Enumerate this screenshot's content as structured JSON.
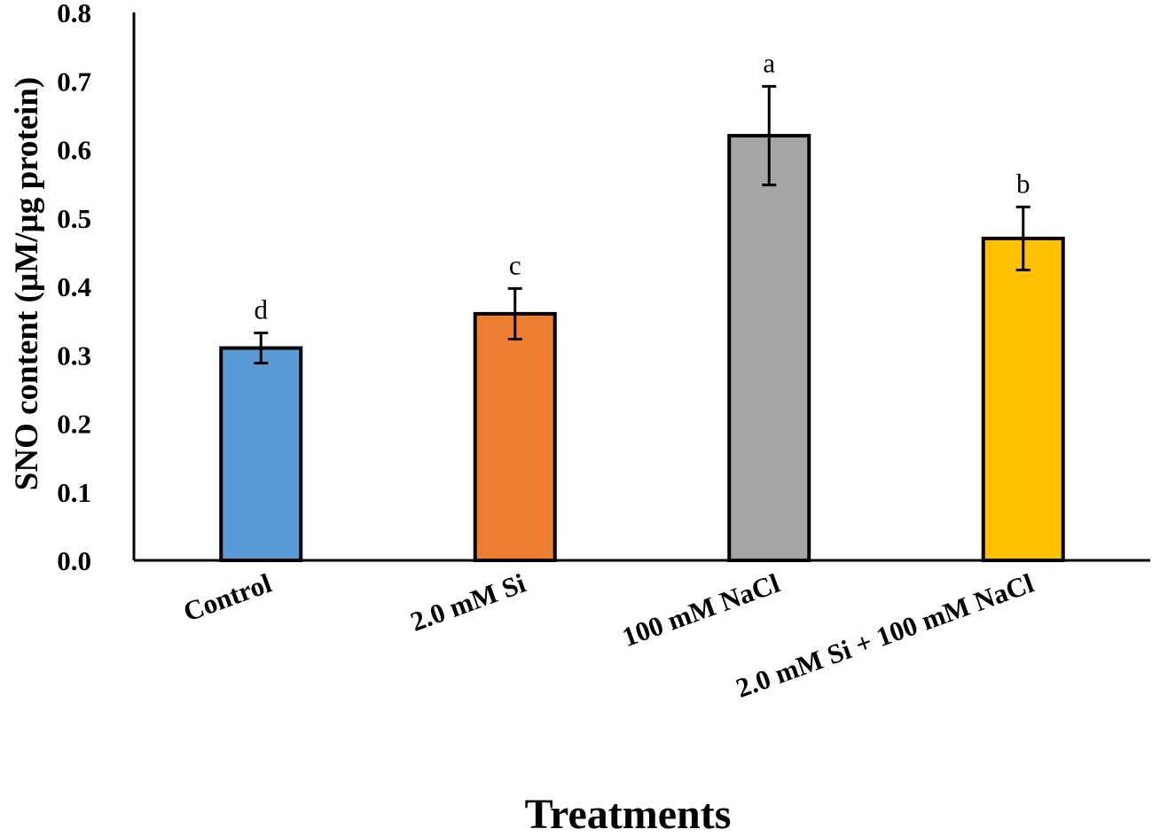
{
  "chart_data": {
    "type": "bar",
    "title": "",
    "xlabel": "Treatments",
    "ylabel": "SNO content (µM/µg protein)",
    "categories": [
      "Control",
      "2.0 mM Si",
      "100 mM NaCl",
      "2.0 mM Si + 100 mM NaCl"
    ],
    "values": [
      0.31,
      0.36,
      0.62,
      0.47
    ],
    "errors": [
      0.022,
      0.037,
      0.072,
      0.046
    ],
    "significance_letters": [
      "d",
      "c",
      "a",
      "b"
    ],
    "colors": [
      "#5b9bd5",
      "#ed7d31",
      "#a5a5a5",
      "#ffc000"
    ],
    "ylim": [
      0,
      0.8
    ],
    "yticks": [
      "0.0",
      "0.1",
      "0.2",
      "0.3",
      "0.4",
      "0.5",
      "0.6",
      "0.7",
      "0.8"
    ],
    "grid": false,
    "legend": "none"
  }
}
